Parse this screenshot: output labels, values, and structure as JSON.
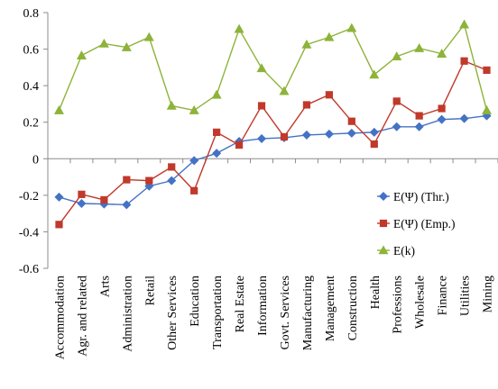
{
  "chart_data": {
    "type": "line",
    "title": "",
    "xlabel": "",
    "ylabel": "",
    "ylim": [
      -0.6,
      0.8
    ],
    "yticks": [
      -0.6,
      -0.4,
      -0.2,
      0,
      0.2,
      0.4,
      0.6,
      0.8
    ],
    "ytick_labels": [
      "-0.6",
      "-0.4",
      "-0.2",
      "0",
      "0.2",
      "0.4",
      "0.6",
      "0.8"
    ],
    "grid": false,
    "legend_position": "right",
    "categories": [
      "Accommodation",
      "Agr. and related",
      "Arts",
      "Administration",
      "Retail",
      "Other Services",
      "Education",
      "Transportation",
      "Real Estate",
      "Information",
      "Govt. Services",
      "Manufacturing",
      "Management",
      "Construction",
      "Health",
      "Professions",
      "Wholesale",
      "Finance",
      "Utilities",
      "Mining"
    ],
    "series": [
      {
        "name": "E(Ψ) (Thr.)",
        "color": "#4472c4",
        "marker": "diamond",
        "values": [
          -0.21,
          -0.245,
          -0.248,
          -0.252,
          -0.15,
          -0.12,
          -0.01,
          0.03,
          0.095,
          0.11,
          0.115,
          0.13,
          0.135,
          0.14,
          0.145,
          0.175,
          0.175,
          0.215,
          0.22,
          0.235
        ]
      },
      {
        "name": "E(Ψ) (Emp.)",
        "color": "#c0392b",
        "marker": "square",
        "values": [
          -0.36,
          -0.195,
          -0.225,
          -0.115,
          -0.12,
          -0.045,
          -0.175,
          0.145,
          0.075,
          0.29,
          0.12,
          0.295,
          0.35,
          0.205,
          0.08,
          0.315,
          0.235,
          0.275,
          0.535,
          0.485
        ]
      },
      {
        "name": "E(k)",
        "color": "#8db33a",
        "marker": "triangle",
        "values": [
          0.265,
          0.565,
          0.63,
          0.61,
          0.665,
          0.29,
          0.265,
          0.35,
          0.71,
          0.495,
          0.37,
          0.625,
          0.665,
          0.715,
          0.46,
          0.56,
          0.605,
          0.575,
          0.735,
          0.265
        ]
      }
    ]
  }
}
